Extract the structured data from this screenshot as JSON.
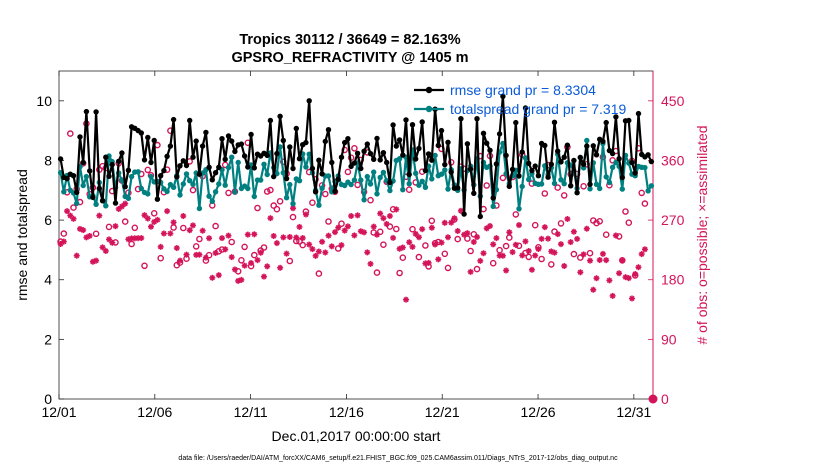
{
  "chart_data": {
    "type": "line",
    "title_line1": "Tropics 30112 / 36649 = 82.163%",
    "title_line2": "GPSRO_REFRACTIVITY @ 1405 m",
    "xlabel": "Dec.01,2017 00:00:00 start",
    "ylabel_left": "rmse and totalspread",
    "ylabel_right": "# of obs: o=possible; ×=assimilated",
    "footnote": "data file: /Users/raeder/DAI/ATM_forcXX/CAM6_setup/f.e21.FHIST_BGC.f09_025.CAM6assim.011/Diags_NTrS_2017-12/obs_diag_output.nc",
    "x_ticks": [
      "12/01",
      "12/06",
      "12/11",
      "12/16",
      "12/21",
      "12/26",
      "12/31"
    ],
    "x_tick_days": [
      1,
      6,
      11,
      16,
      21,
      26,
      31
    ],
    "xlim_days": [
      1,
      32
    ],
    "y_left_ticks": [
      "0",
      "2",
      "4",
      "6",
      "8",
      "10"
    ],
    "ylim_left": [
      0,
      11
    ],
    "y_right_ticks": [
      "0",
      "90",
      "180",
      "270",
      "360",
      "450"
    ],
    "ylim_right": [
      0,
      495
    ],
    "legend": [
      {
        "label": "rmse grand pr = 8.3304",
        "series": "rmse"
      },
      {
        "label": "totalspread grand pr = 7.319",
        "series": "totalspread"
      }
    ],
    "colors": {
      "rmse": "#000000",
      "totalspread": "#008080",
      "obs": "#d4145a",
      "label_text": "#0a5bd7"
    },
    "series": {
      "rmse": [
        8.05,
        7.43,
        7.39,
        7.54,
        7.49,
        6.93,
        8.79,
        7.93,
        9.64,
        7.65,
        6.76,
        9.63,
        7.06,
        6.65,
        8.11,
        7.47,
        7.86,
        6.57,
        7.97,
        8.25,
        7.12,
        7.67,
        9.13,
        9.08,
        9.0,
        8.92,
        8.02,
        8.77,
        7.93,
        8.67,
        6.7,
        7.49,
        7.66,
        8.14,
        8.48,
        9.37,
        7.45,
        7.82,
        7.99,
        7.83,
        9.34,
        8.11,
        8.65,
        7.54,
        8.48,
        8.94,
        7.77,
        7.35,
        7.59,
        7.77,
        8.73,
        8.04,
        8.82,
        8.65,
        8.3,
        8.52,
        8.55,
        8.15,
        7.78,
        8.87,
        7.75,
        8.21,
        8.15,
        8.24,
        8.17,
        9.34,
        7.46,
        8.23,
        9.48,
        8.67,
        7.39,
        8.45,
        7.73,
        9.07,
        8.06,
        8.53,
        8.6,
        10.0,
        7.73,
        6.95,
        8.01,
        7.55,
        8.64,
        9.03,
        7.93,
        6.97,
        7.37,
        8.11,
        8.6,
        8.73,
        7.8,
        7.91,
        8.24,
        7.73,
        8.31,
        8.55,
        8.23,
        8.04,
        8.74,
        8.02,
        8.26,
        7.93,
        7.26,
        9.19,
        8.48,
        8.69,
        8.18,
        9.36,
        7.53,
        9.2,
        8.05,
        8.4,
        9.29,
        7.66,
        8.22,
        8.01,
        9.72,
        8.5,
        9.0,
        7.86,
        8.61,
        7.61,
        7.07,
        7.08,
        9.4,
        6.2,
        8.56,
        7.71,
        6.9,
        9.4,
        6.12,
        8.91,
        8.58,
        8.34,
        6.74,
        7.88,
        8.89,
        10.15,
        8.17,
        7.13,
        7.7,
        9.27,
        7.48,
        8.28,
        9.76,
        7.9,
        7.66,
        7.81,
        7.49,
        8.57,
        8.5,
        7.44,
        7.87,
        9.28,
        8.31,
        7.95,
        8.11,
        8.51,
        7.15,
        8.0,
        6.92,
        8.1,
        7.87,
        8.48,
        7.2,
        8.49,
        8.19,
        8.71,
        8.64,
        9.27,
        8.33,
        8.23,
        9.46,
        8.06,
        7.43,
        9.33,
        9.34,
        7.93,
        7.58,
        9.57,
        8.2,
        8.12,
        8.19,
        7.96
      ],
      "totalspread": [
        7.59,
        6.95,
        7.5,
        7.0,
        6.91,
        6.56,
        7.79,
        7.16,
        7.46,
        6.78,
        6.82,
        6.53,
        7.26,
        6.65,
        6.48,
        8.15,
        7.96,
        7.09,
        7.58,
        7.33,
        6.79,
        6.73,
        7.46,
        7.61,
        7.62,
        7.06,
        6.93,
        6.88,
        7.46,
        7.28,
        7.3,
        7.26,
        7.05,
        6.96,
        7.19,
        7.1,
        7.49,
        6.84,
        7.21,
        7.55,
        7.32,
        7.2,
        7.58,
        6.39,
        7.58,
        7.69,
        6.8,
        6.63,
        6.95,
        7.21,
        7.69,
        7.17,
        7.76,
        8.11,
        6.94,
        7.93,
        7.06,
        7.14,
        7.06,
        7.85,
        6.79,
        7.34,
        7.34,
        7.87,
        7.53,
        8.25,
        7.76,
        7.56,
        8.45,
        7.59,
        6.75,
        7.19,
        6.55,
        7.38,
        7.32,
        8.22,
        7.78,
        8.21,
        7.59,
        7.0,
        6.5,
        7.07,
        7.48,
        7.48,
        6.95,
        7.29,
        7.48,
        7.19,
        7.16,
        7.27,
        7.19,
        7.34,
        7.91,
        7.34,
        6.68,
        7.46,
        7.21,
        7.61,
        6.88,
        7.43,
        7.6,
        7.32,
        6.99,
        7.31,
        8.0,
        8.06,
        7.02,
        8.11,
        7.22,
        8.35,
        7.57,
        7.17,
        7.3,
        7.1,
        7.81,
        7.38,
        8.17,
        7.49,
        7.54,
        7.68,
        7.04,
        7.69,
        7.18,
        7.0,
        7.72,
        7.01,
        7.66,
        7.81,
        7.18,
        8.05,
        6.8,
        7.93,
        7.77,
        7.81,
        6.46,
        7.02,
        8.28,
        8.57,
        7.56,
        7.22,
        7.49,
        7.67,
        6.38,
        7.13,
        8.09,
        7.36,
        7.56,
        7.23,
        7.2,
        7.21,
        7.82,
        7.53,
        7.75,
        7.23,
        8.21,
        7.35,
        7.22,
        7.92,
        7.85,
        7.65,
        7.06,
        8.1,
        7.75,
        8.67,
        7.05,
        7.92,
        7.2,
        7.06,
        8.57,
        7.45,
        7.26,
        7.77,
        7.93,
        7.8,
        7.04,
        8.17,
        7.91,
        7.54,
        7.49,
        7.8,
        7.77,
        7.76,
        6.98,
        7.15
      ],
      "obs_possible": [
        237.6,
        249.6,
        311.9,
        400.5,
        288.8,
        316.9,
        297.1,
        355.7,
        415.6,
        309.2,
        319.0,
        249.3,
        346.1,
        351.4,
        348.5,
        259.7,
        313.8,
        236.4,
        355.7,
        329.6,
        267.7,
        311.2,
        233.9,
        258.4,
        316.7,
        339.6,
        201.0,
        345.7,
        337.6,
        280.3,
        383.2,
        212.5,
        312.1,
        346.1,
        404.9,
        258.8,
        201.9,
        205.8,
        258.0,
        211.8,
        358.6,
        315.2,
        230.3,
        241.4,
        336.3,
        208.9,
        217.0,
        292.1,
        261.0,
        222.9,
        225.6,
        353.3,
        311.0,
        237.0,
        313.0,
        192.7,
        209.3,
        229.5,
        386.6,
        200.6,
        217.2,
        288.2,
        223.9,
        228.7,
        313.1,
        315.3,
        291.9,
        286.5,
        298.4,
        357.9,
        340.1,
        208.2,
        274.5,
        238.5,
        237.8,
        232.3,
        282.8,
        342.5,
        296.2,
        331.6,
        189.3,
        322.3,
        309.4,
        267.9,
        317.3,
        312.7,
        227.2,
        264.5,
        376.0,
        342.8,
        364.1,
        378.3,
        323.1,
        360.8,
        312.5,
        372.2,
        300.0,
        251.3,
        190.7,
        252.4,
        232.9,
        327.8,
        260.2,
        286.3,
        256.6,
        190.2,
        213.2,
        335.3,
        315.8,
        256.3,
        326.9,
        214.1,
        343.1,
        231.6,
        200.1,
        269.0,
        235.1,
        237.0,
        377.4,
        219.1,
        197.9,
        357.2,
        271.1,
        241.3,
        350.6,
        347.4,
        242.1,
        223.4,
        248.6,
        196.0,
        366.5,
        286.6,
        322.2,
        366.8,
        204.9,
        292.0,
        224.6,
        333.6,
        230.7,
        243.6,
        335.0,
        278.6,
        231.2,
        368.7,
        220.4,
        214.4,
        325.0,
        262.3,
        229.0,
        211.3,
        310.1,
        353.2,
        203.1,
        252.7,
        319.1,
        265.0,
        307.3,
        380.2,
        339.1,
        218.6,
        339.6,
        213.4,
        321.0,
        354.2,
        220.0,
        269.4,
        265.4,
        268.1,
        365.2,
        248.0,
        322.6,
        360.2,
        374.3,
        245.4,
        209.3,
        283.0,
        266.1,
        359.2,
        186.5,
        378.4,
        311.1,
        294.9
      ],
      "obs_assimilated": [
        233.9,
        237.6,
        283.6,
        276.8,
        271.9,
        216.3,
        256.7,
        254.9,
        243.9,
        246.1,
        207.1,
        208.8,
        276.7,
        228.9,
        223.4,
        240.9,
        235.8,
        260.8,
        286.8,
        290.6,
        294.8,
        241.0,
        242.4,
        242.5,
        242.7,
        242.9,
        277.4,
        272.4,
        260.0,
        267.3,
        270.4,
        229.6,
        249.8,
        283.5,
        249.8,
        266.6,
        227.8,
        208.8,
        276.1,
        217.8,
        254.7,
        262.0,
        217.5,
        217.8,
        254.0,
        213.4,
        242.6,
        182.9,
        220.4,
        186.9,
        242.8,
        225.9,
        246.6,
        214.1,
        195.5,
        178.2,
        179.8,
        201.3,
        248.1,
        205.2,
        248.6,
        209.5,
        220.8,
        184.7,
        200.2,
        272.9,
        246.0,
        235.3,
        198.0,
        244.0,
        219.4,
        244.5,
        287.9,
        243.7,
        259.7,
        242.9,
        278.5,
        233.1,
        226.2,
        216.0,
        222.6,
        237.3,
        221.1,
        246.5,
        230.4,
        251.8,
        258.6,
        232.2,
        254.2,
        260.5,
        276.2,
        246.9,
        277.2,
        253.2,
        251.5,
        221.3,
        203.9,
        260.1,
        247.9,
        279.9,
        272.8,
        264.1,
        276.1,
        243.1,
        286.1,
        226.7,
        228.6,
        149.9,
        236.6,
        229.6,
        249.1,
        244.1,
        256.3,
        204.6,
        205.4,
        258.5,
        233.2,
        210.8,
        236.0,
        265.9,
        244.1,
        266.2,
        272.8,
        253.5,
        284.0,
        248.0,
        250.3,
        191.9,
        236.9,
        244.4,
        208.5,
        220.0,
        257.6,
        261.1,
        233.4,
        242.8,
        216.4,
        216.2,
        194.0,
        251.6,
        221.7,
        232.7,
        262.5,
        216.7,
        237.8,
        223.4,
        195.0,
        216.5,
        226.3,
        241.7,
        259.3,
        242.0,
        222.7,
        220.9,
        248.9,
        233.7,
        200.7,
        271.7,
        236.8,
        252.4,
        241.6,
        191.2,
        218.2,
        257.0,
        208.8,
        164.9,
        182.3,
        209.7,
        219.0,
        209.5,
        179.0,
        155.6,
        246.8,
        189.8,
        208.8,
        183.9,
        182.4,
        151.7,
        188.6,
        198.9,
        218.7,
        225.9
      ]
    }
  }
}
